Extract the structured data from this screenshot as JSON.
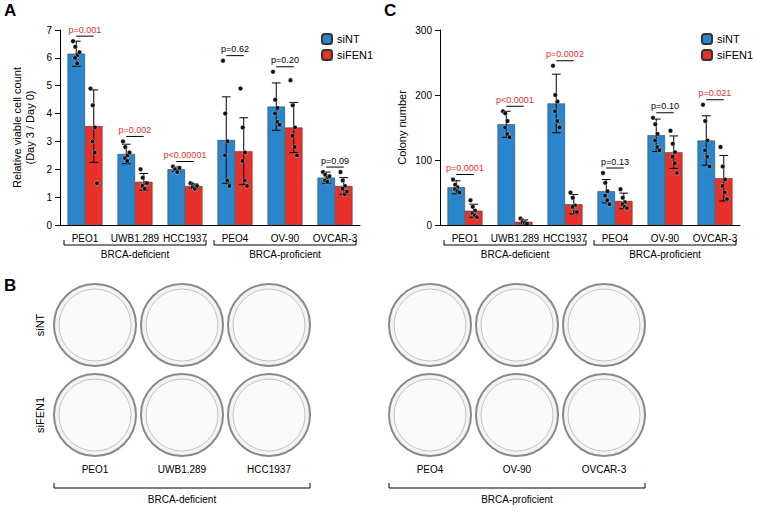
{
  "chart_data": [
    {
      "type": "bar",
      "panel": "A",
      "ylabel": "Relative viable cell count\n(Day 3 / Day 0)",
      "categories": [
        "PEO1",
        "UWB1.289",
        "HCC1937",
        "PEO4",
        "OV-90",
        "OVCAR-3"
      ],
      "series": [
        {
          "name": "siNT",
          "color": "#2a86cc",
          "values": [
            6.15,
            2.55,
            2.0,
            3.05,
            4.25,
            1.7
          ],
          "errors": [
            0.45,
            0.35,
            0.08,
            1.55,
            0.85,
            0.2
          ],
          "points": [
            [
              6.6,
              6.4,
              6.1,
              6.0,
              5.8,
              6.2
            ],
            [
              3.0,
              2.8,
              2.5,
              2.4,
              2.3,
              2.6
            ],
            [
              2.1,
              2.0,
              1.95,
              2.0,
              1.9,
              2.05
            ],
            [
              5.9,
              4.0,
              3.0,
              2.5,
              1.6,
              1.4
            ],
            [
              5.5,
              4.5,
              4.2,
              4.0,
              3.7,
              3.6
            ],
            [
              1.9,
              1.8,
              1.7,
              1.6,
              1.55,
              1.75
            ]
          ]
        },
        {
          "name": "siFEN1",
          "color": "#e8312a",
          "values": [
            3.55,
            1.55,
            1.4,
            2.65,
            3.5,
            1.4
          ],
          "errors": [
            1.3,
            0.3,
            0.08,
            1.2,
            0.9,
            0.3
          ],
          "points": [
            [
              4.9,
              4.3,
              3.5,
              3.0,
              2.6,
              1.5
            ],
            [
              2.0,
              1.7,
              1.5,
              1.4,
              1.3,
              1.5
            ],
            [
              1.5,
              1.45,
              1.4,
              1.35,
              1.3,
              1.4
            ],
            [
              4.9,
              3.5,
              2.6,
              2.3,
              1.6,
              1.4
            ],
            [
              5.2,
              4.3,
              3.5,
              3.2,
              2.8,
              2.5
            ],
            [
              1.9,
              1.6,
              1.4,
              1.3,
              1.1,
              1.2
            ]
          ]
        }
      ],
      "annotations": [
        {
          "text": "p=0.001",
          "color": "#e8312a"
        },
        {
          "text": "p=0.002",
          "color": "#e8312a"
        },
        {
          "text": "p<0.00001",
          "color": "#e8312a"
        },
        {
          "text": "p=0.62",
          "color": "#000000"
        },
        {
          "text": "p=0.20",
          "color": "#000000"
        },
        {
          "text": "p=0.09",
          "color": "#000000"
        }
      ],
      "groups": [
        {
          "label": "BRCA-deficient",
          "categories": [
            "PEO1",
            "UWB1.289",
            "HCC1937"
          ]
        },
        {
          "label": "BRCA-proficient",
          "categories": [
            "PEO4",
            "OV-90",
            "OVCAR-3"
          ]
        }
      ],
      "ylim": [
        0,
        7
      ],
      "yticks": [
        0,
        1,
        2,
        3,
        4,
        5,
        6,
        7
      ],
      "grid": false,
      "legend": "upper right"
    },
    {
      "type": "bar",
      "panel": "C",
      "ylabel": "Colony number",
      "categories": [
        "PEO1",
        "UWB1.289",
        "HCC1937",
        "PEO4",
        "OV-90",
        "OVCAR-3"
      ],
      "series": [
        {
          "name": "siNT",
          "color": "#2a86cc",
          "values": [
            58,
            155,
            187,
            52,
            138,
            130
          ],
          "errors": [
            10,
            20,
            45,
            18,
            25,
            38
          ],
          "points": [
            [
              70,
              62,
              58,
              55,
              52,
              50
            ],
            [
              175,
              172,
              160,
              150,
              140,
              135
            ],
            [
              245,
              200,
              190,
              175,
              160,
              150
            ],
            [
              80,
              65,
              52,
              45,
              38,
              32
            ],
            [
              165,
              155,
              140,
              130,
              120,
              115
            ],
            [
              185,
              160,
              130,
              115,
              105,
              90
            ]
          ]
        },
        {
          "name": "siFEN1",
          "color": "#e8312a",
          "values": [
            22,
            5,
            32,
            37,
            112,
            72
          ],
          "errors": [
            10,
            3,
            15,
            12,
            25,
            35
          ],
          "points": [
            [
              38,
              28,
              22,
              18,
              15,
              12
            ],
            [
              10,
              7,
              5,
              4,
              3,
              2
            ],
            [
              50,
              42,
              30,
              28,
              20,
              20
            ],
            [
              55,
              42,
              35,
              32,
              28,
              26
            ],
            [
              145,
              125,
              112,
              105,
              95,
              80
            ],
            [
              120,
              90,
              70,
              60,
              50,
              40
            ]
          ]
        }
      ],
      "annotations": [
        {
          "text": "p=0.0001",
          "color": "#e8312a"
        },
        {
          "text": "p<0.0001",
          "color": "#e8312a"
        },
        {
          "text": "p=0.0002",
          "color": "#e8312a"
        },
        {
          "text": "p=0.13",
          "color": "#000000"
        },
        {
          "text": "p=0.10",
          "color": "#000000"
        },
        {
          "text": "p=0.021",
          "color": "#e8312a"
        }
      ],
      "groups": [
        {
          "label": "BRCA-deficient",
          "categories": [
            "PEO1",
            "UWB1.289",
            "HCC1937"
          ]
        },
        {
          "label": "BRCA-proficient",
          "categories": [
            "PEO4",
            "OV-90",
            "OVCAR-3"
          ]
        }
      ],
      "ylim": [
        0,
        300
      ],
      "yticks": [
        0,
        100,
        200,
        300
      ],
      "grid": false,
      "legend": "upper right"
    }
  ],
  "image_panel": {
    "label": "B",
    "rows": [
      "siNT",
      "siFEN1"
    ],
    "columns": [
      "PEO1",
      "UWB1.289",
      "HCC1937",
      "PEO4",
      "OV-90",
      "OVCAR-3"
    ],
    "groups": [
      {
        "label": "BRCA-deficient",
        "columns": [
          "PEO1",
          "UWB1.289",
          "HCC1937"
        ]
      },
      {
        "label": "BRCA-proficient",
        "columns": [
          "PEO4",
          "OV-90",
          "OVCAR-3"
        ]
      }
    ]
  }
}
